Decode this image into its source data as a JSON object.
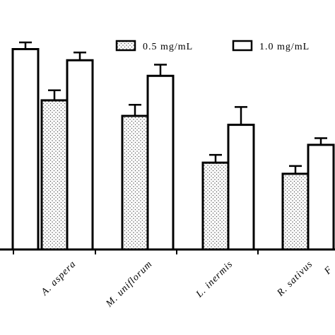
{
  "chart_data": {
    "type": "bar",
    "title": "",
    "xlabel": "",
    "ylabel": "",
    "categories": [
      "",
      "A. aspera",
      "M. uniflorum",
      "L. inermis",
      "R. sativus",
      "F"
    ],
    "series": [
      {
        "name": "0.5 mg/mL",
        "values": [
          null,
          67,
          60,
          39,
          34,
          null
        ],
        "errors": [
          null,
          4.5,
          5,
          3.5,
          3.5,
          null
        ]
      },
      {
        "name": "1.0 mg/mL",
        "values": [
          90,
          85,
          78,
          56,
          47,
          null
        ],
        "errors": [
          3,
          3.5,
          5,
          8,
          3,
          null
        ]
      }
    ],
    "ylim": [
      0,
      100
    ],
    "grid": false,
    "legend_position": "top-right",
    "colors": {
      "bar_stroke": "#000000",
      "dot_fill": "#555555",
      "plain_fill": "#ffffff"
    }
  }
}
